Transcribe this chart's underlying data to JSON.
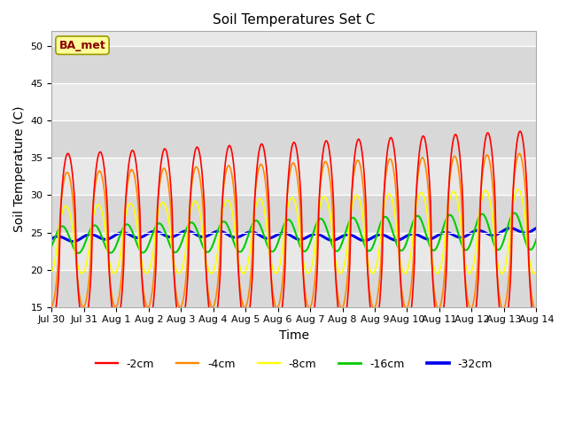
{
  "title": "Soil Temperatures Set C",
  "xlabel": "Time",
  "ylabel": "Soil Temperature (C)",
  "ylim": [
    15,
    52
  ],
  "yticks": [
    15,
    20,
    25,
    30,
    35,
    40,
    45,
    50
  ],
  "xtick_labels": [
    "Jul 30",
    "Jul 31",
    "Aug 1",
    "Aug 2",
    "Aug 3",
    "Aug 4",
    "Aug 5",
    "Aug 6",
    "Aug 7",
    "Aug 8",
    "Aug 9",
    "Aug 10",
    "Aug 11",
    "Aug 12",
    "Aug 13",
    "Aug 14"
  ],
  "legend_labels": [
    "-2cm",
    "-4cm",
    "-8cm",
    "-16cm",
    "-32cm"
  ],
  "line_colors": [
    "#ff0000",
    "#ff8800",
    "#ffff00",
    "#00cc00",
    "#0000ee"
  ],
  "line_widths": [
    1.2,
    1.2,
    1.2,
    1.5,
    2.2
  ],
  "plot_bg_color": "#e8e8e8",
  "band_color_light": "#e8e8e8",
  "band_color_dark": "#d8d8d8",
  "annotation_text": "BA_met",
  "annotation_bg": "#ffff99",
  "annotation_border": "#999900"
}
